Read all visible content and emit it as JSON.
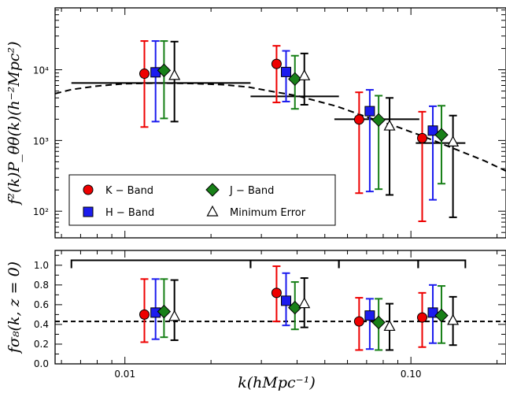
{
  "colors": {
    "K": "#ee0000",
    "H": "#1c1cee",
    "J": "#188018",
    "Min": "#000000"
  },
  "icons": {
    "K": "circle",
    "H": "square",
    "J": "diamond",
    "Min": "open-triangle"
  },
  "chart_data": [
    {
      "type": "scatter",
      "panel": "top",
      "ylabel": "f²(k)P_θθ(k)(h⁻²Mpc²)",
      "yscale": "log",
      "xscale": "log",
      "xlim": [
        0.0057,
        0.215
      ],
      "ylim": [
        42,
        75000
      ],
      "y_tick_labels": [
        {
          "value": 100,
          "label": "10²"
        },
        {
          "value": 1000,
          "label": "10³"
        },
        {
          "value": 10000,
          "label": "10⁴"
        }
      ],
      "legend": {
        "position": "lower-left",
        "entries": [
          {
            "key": "K",
            "label": "K − Band"
          },
          {
            "key": "J",
            "label": "J − Band"
          },
          {
            "key": "H",
            "label": "H − Band"
          },
          {
            "key": "Min",
            "label": "Minimum Error"
          }
        ]
      },
      "model_curve": {
        "style": "dashed",
        "points": [
          [
            0.0057,
            4600
          ],
          [
            0.0065,
            5250
          ],
          [
            0.008,
            5900
          ],
          [
            0.01,
            6350
          ],
          [
            0.013,
            6480
          ],
          [
            0.017,
            6400
          ],
          [
            0.022,
            6150
          ],
          [
            0.027,
            5700
          ],
          [
            0.033,
            4900
          ],
          [
            0.04,
            4300
          ],
          [
            0.047,
            3600
          ],
          [
            0.055,
            3050
          ],
          [
            0.07,
            2150
          ],
          [
            0.09,
            1550
          ],
          [
            0.11,
            1150
          ],
          [
            0.14,
            780
          ],
          [
            0.18,
            520
          ],
          [
            0.215,
            370
          ]
        ]
      },
      "band_power": [
        {
          "kmin": 0.0065,
          "kmax": 0.0275,
          "y": 6500
        },
        {
          "kmin": 0.0275,
          "kmax": 0.056,
          "y": 4200
        },
        {
          "kmin": 0.054,
          "kmax": 0.107,
          "y": 2000
        },
        {
          "kmin": 0.104,
          "kmax": 0.155,
          "y": 920
        }
      ],
      "series": [
        {
          "key": "K",
          "name": "K − Band",
          "x": [
            0.0117,
            0.0339,
            0.0659,
            0.1095
          ],
          "y": [
            8800,
            12100,
            1980,
            1080
          ],
          "ylow": [
            1550,
            3450,
            180,
            72
          ],
          "yhigh": [
            25500,
            21800,
            4800,
            2550
          ]
        },
        {
          "key": "H",
          "name": "H − Band",
          "x": [
            0.0128,
            0.0366,
            0.0718,
            0.1193
          ],
          "y": [
            9200,
            9300,
            2600,
            1380
          ],
          "ylow": [
            1850,
            3550,
            190,
            145
          ],
          "yhigh": [
            25500,
            18500,
            5200,
            3050
          ]
        },
        {
          "key": "J",
          "name": "J − Band",
          "x": [
            0.0137,
            0.0393,
            0.0771,
            0.1279
          ],
          "y": [
            9800,
            7400,
            1950,
            1200
          ],
          "ylow": [
            2050,
            2800,
            205,
            245
          ],
          "yhigh": [
            25500,
            15800,
            4300,
            3100
          ]
        },
        {
          "key": "Min",
          "name": "Minimum Error",
          "x": [
            0.0149,
            0.0424,
            0.0842,
            0.1403
          ],
          "y": [
            8300,
            8200,
            1600,
            950
          ],
          "ylow": [
            1850,
            3200,
            170,
            82
          ],
          "yhigh": [
            25000,
            17000,
            4000,
            2250
          ]
        }
      ]
    },
    {
      "type": "scatter",
      "panel": "bottom",
      "xlabel": "k(hMpc⁻¹)",
      "ylabel": "fσ₈(k, z = 0)",
      "xscale": "log",
      "xlim": [
        0.0057,
        0.215
      ],
      "ylim": [
        0.0,
        1.15
      ],
      "x_tick_labels": [
        {
          "value": 0.01,
          "label": "0.01"
        },
        {
          "value": 0.1,
          "label": "0.10"
        }
      ],
      "y_tick_labels": [
        {
          "value": 0.0,
          "label": "0.0"
        },
        {
          "value": 0.2,
          "label": "0.2"
        },
        {
          "value": 0.4,
          "label": "0.4"
        },
        {
          "value": 0.6,
          "label": "0.6"
        },
        {
          "value": 0.8,
          "label": "0.8"
        },
        {
          "value": 1.0,
          "label": "1.0"
        }
      ],
      "reference_line": {
        "y": 0.43,
        "style": "dashed"
      },
      "bin_brackets": [
        {
          "kmin": 0.0065,
          "kmax": 0.0275,
          "y": 1.05
        },
        {
          "kmin": 0.0275,
          "kmax": 0.056,
          "y": 1.05
        },
        {
          "kmin": 0.056,
          "kmax": 0.106,
          "y": 1.05
        },
        {
          "kmin": 0.106,
          "kmax": 0.155,
          "y": 1.05
        }
      ],
      "series": [
        {
          "key": "K",
          "name": "K − Band",
          "x": [
            0.0117,
            0.0339,
            0.0659,
            0.1095
          ],
          "y": [
            0.5,
            0.72,
            0.43,
            0.47
          ],
          "ylow": [
            0.22,
            0.43,
            0.14,
            0.17
          ],
          "yhigh": [
            0.86,
            0.99,
            0.67,
            0.72
          ]
        },
        {
          "key": "H",
          "name": "H − Band",
          "x": [
            0.0128,
            0.0366,
            0.0718,
            0.1193
          ],
          "y": [
            0.52,
            0.64,
            0.49,
            0.52
          ],
          "ylow": [
            0.25,
            0.39,
            0.15,
            0.21
          ],
          "yhigh": [
            0.86,
            0.92,
            0.66,
            0.8
          ]
        },
        {
          "key": "J",
          "name": "J − Band",
          "x": [
            0.0137,
            0.0393,
            0.0771,
            0.1279
          ],
          "y": [
            0.53,
            0.57,
            0.42,
            0.49
          ],
          "ylow": [
            0.27,
            0.35,
            0.14,
            0.21
          ],
          "yhigh": [
            0.86,
            0.83,
            0.66,
            0.79
          ]
        },
        {
          "key": "Min",
          "name": "Minimum Error",
          "x": [
            0.0149,
            0.0424,
            0.0842,
            0.1403
          ],
          "y": [
            0.48,
            0.61,
            0.38,
            0.44
          ],
          "ylow": [
            0.24,
            0.37,
            0.14,
            0.19
          ],
          "yhigh": [
            0.85,
            0.87,
            0.61,
            0.68
          ]
        }
      ]
    }
  ]
}
